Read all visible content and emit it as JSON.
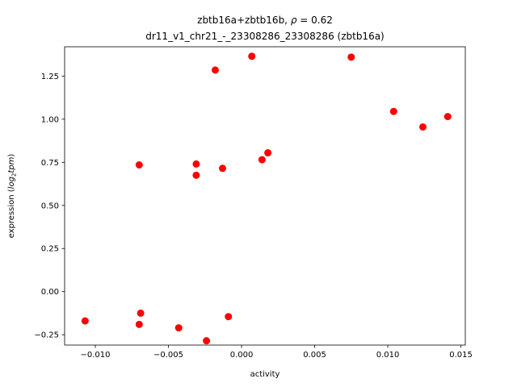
{
  "chart_data": {
    "type": "scatter",
    "title_line1_prefix": "zbtb16a+zbtb16b, ",
    "title_line1_rho": "ρ",
    "title_line1_suffix": " = 0.62",
    "title_line2": "dr11_v1_chr21_-_23308286_23308286 (zbtb16a)",
    "xlabel": "activity",
    "ylabel_prefix": "expression (",
    "ylabel_math": "log",
    "ylabel_sub": "2",
    "ylabel_math2": "tpm",
    "ylabel_suffix": ")",
    "xlim": [
      -0.0121,
      0.0153
    ],
    "ylim": [
      -0.31,
      1.42
    ],
    "xticks": [
      -0.01,
      -0.005,
      0.0,
      0.005,
      0.01,
      0.015
    ],
    "xtick_labels": [
      "−0.010",
      "−0.005",
      "0.000",
      "0.005",
      "0.010",
      "0.015"
    ],
    "yticks": [
      -0.25,
      0.0,
      0.25,
      0.5,
      0.75,
      1.0,
      1.25
    ],
    "ytick_labels": [
      "−0.25",
      "0.00",
      "0.25",
      "0.50",
      "0.75",
      "1.00",
      "1.25"
    ],
    "marker_color": "#ff0000",
    "grid": false,
    "points": [
      {
        "x": -0.0107,
        "y": -0.17
      },
      {
        "x": -0.007,
        "y": 0.735
      },
      {
        "x": -0.0069,
        "y": -0.125
      },
      {
        "x": -0.007,
        "y": -0.19
      },
      {
        "x": -0.0043,
        "y": -0.21
      },
      {
        "x": -0.0031,
        "y": 0.74
      },
      {
        "x": -0.0031,
        "y": 0.675
      },
      {
        "x": -0.0024,
        "y": -0.285
      },
      {
        "x": -0.0018,
        "y": 1.285
      },
      {
        "x": -0.0013,
        "y": 0.715
      },
      {
        "x": -0.0009,
        "y": -0.145
      },
      {
        "x": 0.0007,
        "y": 1.365
      },
      {
        "x": 0.0014,
        "y": 0.765
      },
      {
        "x": 0.0018,
        "y": 0.805
      },
      {
        "x": 0.0075,
        "y": 1.36
      },
      {
        "x": 0.0104,
        "y": 1.045
      },
      {
        "x": 0.0124,
        "y": 0.955
      },
      {
        "x": 0.0141,
        "y": 1.015
      }
    ]
  }
}
